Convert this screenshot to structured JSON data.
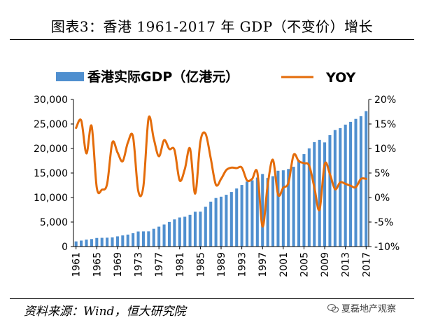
{
  "title": "图表3：香港 1961-2017 年 GDP（不变价）增长",
  "source": "资料来源：Wind，恒大研究院",
  "watermark": "夏磊地产观察",
  "chart_data": {
    "type": "bar+line",
    "x": [
      1961,
      1962,
      1963,
      1964,
      1965,
      1966,
      1967,
      1968,
      1969,
      1970,
      1971,
      1972,
      1973,
      1974,
      1975,
      1976,
      1977,
      1978,
      1979,
      1980,
      1981,
      1982,
      1983,
      1984,
      1985,
      1986,
      1987,
      1988,
      1989,
      1990,
      1991,
      1992,
      1993,
      1994,
      1995,
      1996,
      1997,
      1998,
      1999,
      2000,
      2001,
      2002,
      2003,
      2004,
      2005,
      2006,
      2007,
      2008,
      2009,
      2010,
      2011,
      2012,
      2013,
      2014,
      2015,
      2016,
      2017
    ],
    "x_tick_labels": [
      "1961",
      "1965",
      "1969",
      "1973",
      "1977",
      "1981",
      "1985",
      "1989",
      "1993",
      "1997",
      "2001",
      "2005",
      "2009",
      "2013",
      "2017"
    ],
    "series": [
      {
        "name": "香港实际GDP（亿港元）",
        "type": "bar",
        "axis": "left",
        "color": "#4f8fcf",
        "values": [
          1050,
          1220,
          1420,
          1530,
          1750,
          1780,
          1810,
          1870,
          2080,
          2270,
          2440,
          2730,
          3070,
          3090,
          3100,
          3620,
          4060,
          4500,
          5020,
          5540,
          5930,
          6080,
          6460,
          7100,
          7120,
          8130,
          9160,
          9900,
          10170,
          10560,
          11130,
          11840,
          12560,
          13250,
          13500,
          14070,
          14800,
          13980,
          14350,
          15460,
          15550,
          15820,
          16270,
          17650,
          18850,
          20030,
          21300,
          21740,
          21240,
          22720,
          23760,
          24150,
          24870,
          25440,
          26040,
          26590,
          27620
        ]
      },
      {
        "name": "YOY",
        "type": "line",
        "axis": "right",
        "color": "#e46c0a",
        "values": [
          14.2,
          15.7,
          9.0,
          14.6,
          2.0,
          1.6,
          2.8,
          11.2,
          9.2,
          7.4,
          11.2,
          12.4,
          1.4,
          2.3,
          16.2,
          12.0,
          8.4,
          11.7,
          9.9,
          9.7,
          3.5,
          5.8,
          10.0,
          0.8,
          11.4,
          13.0,
          8.0,
          2.6,
          3.8,
          5.6,
          6.1,
          6.0,
          6.1,
          3.5,
          3.8,
          5.1,
          -5.9,
          2.6,
          7.7,
          0.6,
          2.0,
          3.0,
          8.7,
          7.4,
          7.0,
          6.5,
          2.1,
          -2.5,
          6.8,
          4.8,
          1.7,
          3.1,
          2.8,
          2.4,
          2.1,
          3.8,
          3.8
        ]
      }
    ],
    "y_left": {
      "min": 0,
      "max": 30000,
      "ticks": [
        "0",
        "5,000",
        "10,000",
        "15,000",
        "20,000",
        "25,000",
        "30,000"
      ],
      "tick_values": [
        0,
        5000,
        10000,
        15000,
        20000,
        25000,
        30000
      ]
    },
    "y_right": {
      "min": -10,
      "max": 20,
      "ticks": [
        "-10%",
        "-5%",
        "0%",
        "5%",
        "10%",
        "15%",
        "20%"
      ],
      "tick_values": [
        -10,
        -5,
        0,
        5,
        10,
        15,
        20
      ]
    },
    "legend": {
      "placement": "top",
      "bar_label": "香港实际GDP（亿港元）",
      "line_label": "YOY"
    }
  }
}
